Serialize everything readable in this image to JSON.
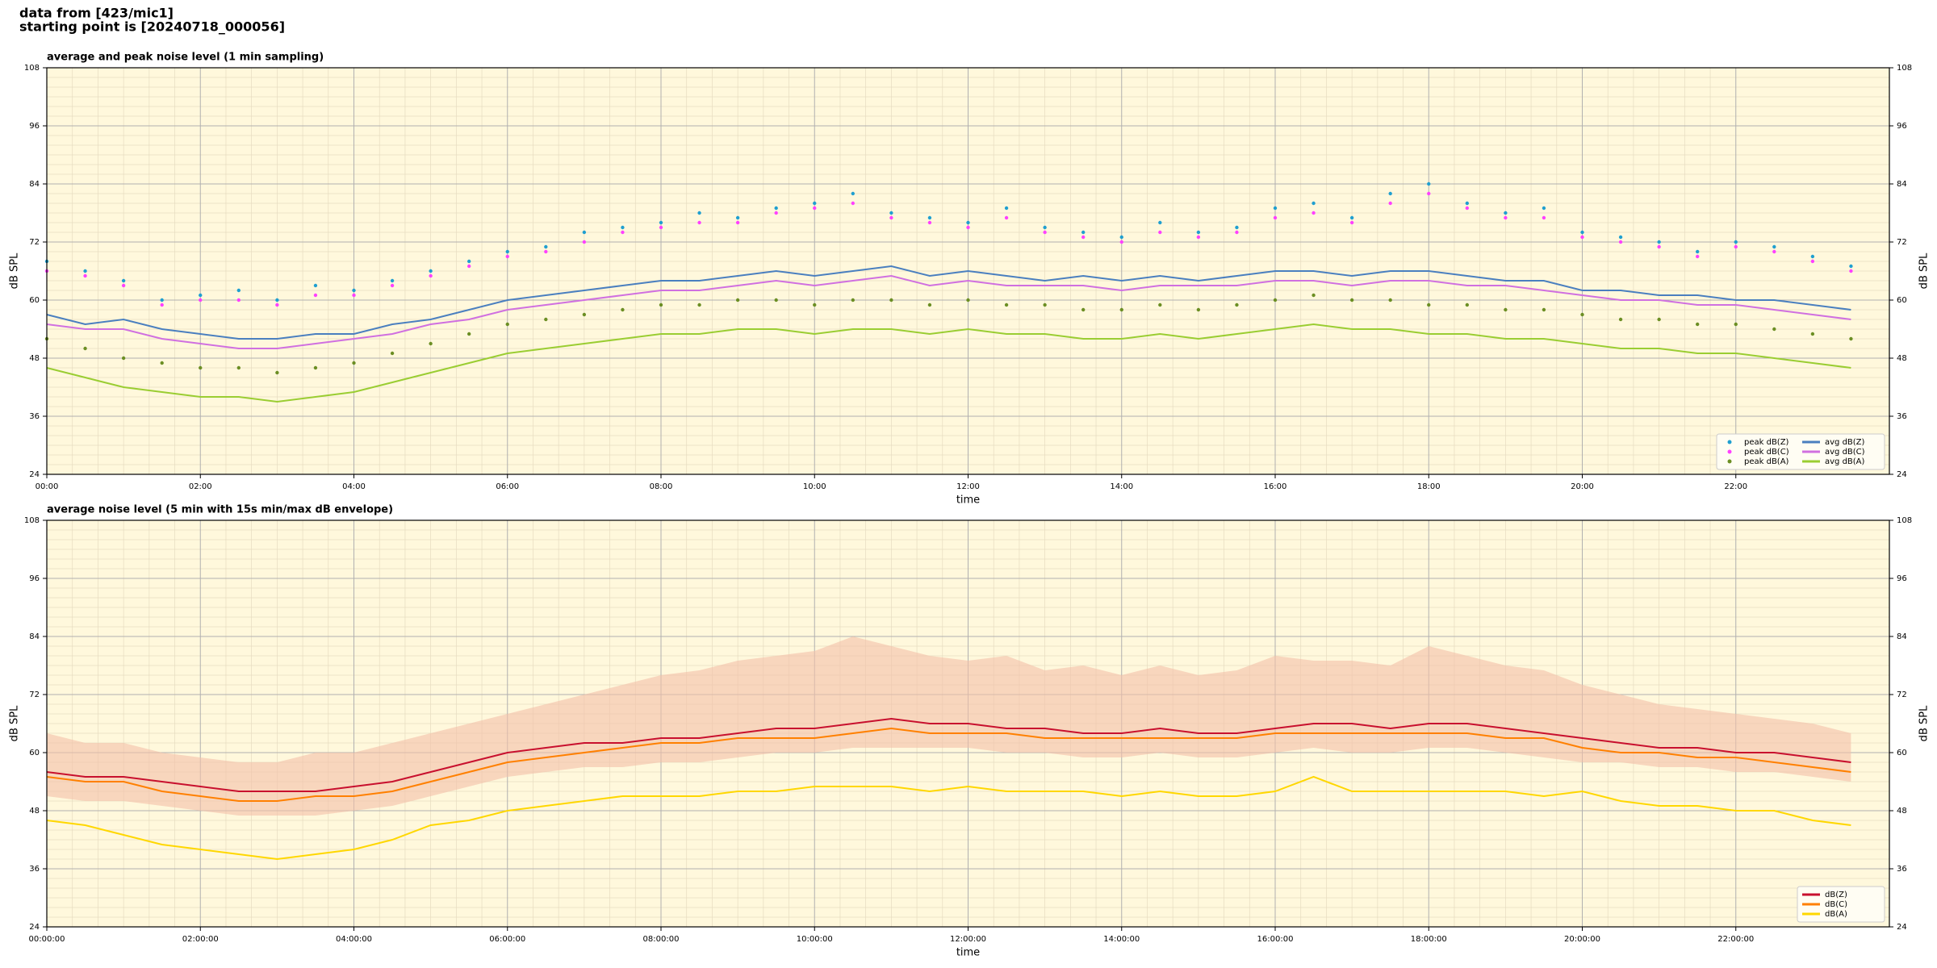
{
  "suptitle": [
    "data from [423/mic1]",
    "starting point is [20240718_000056]"
  ],
  "chart_data": [
    {
      "type": "line",
      "title": "average and peak noise level (1 min sampling)",
      "xlabel": "time",
      "ylabel": "dB SPL",
      "x": [
        0,
        0.5,
        1,
        1.5,
        2,
        2.5,
        3,
        3.5,
        4,
        4.5,
        5,
        5.5,
        6,
        6.5,
        7,
        7.5,
        8,
        8.5,
        9,
        9.5,
        10,
        10.5,
        11,
        11.5,
        12,
        12.5,
        13,
        13.5,
        14,
        14.5,
        15,
        15.5,
        16,
        16.5,
        17,
        17.5,
        18,
        18.5,
        19,
        19.5,
        20,
        20.5,
        21,
        21.5,
        22,
        22.5,
        23,
        23.5
      ],
      "xlim": [
        0,
        24
      ],
      "ylim": [
        24,
        108
      ],
      "yticks": [
        24,
        36,
        48,
        60,
        72,
        84,
        96,
        108
      ],
      "xticks": [
        {
          "value": 0,
          "label": "00:00"
        },
        {
          "value": 2,
          "label": "02:00"
        },
        {
          "value": 4,
          "label": "04:00"
        },
        {
          "value": 6,
          "label": "06:00"
        },
        {
          "value": 8,
          "label": "08:00"
        },
        {
          "value": 10,
          "label": "10:00"
        },
        {
          "value": 12,
          "label": "12:00"
        },
        {
          "value": 14,
          "label": "14:00"
        },
        {
          "value": 16,
          "label": "16:00"
        },
        {
          "value": 18,
          "label": "18:00"
        },
        {
          "value": 20,
          "label": "20:00"
        },
        {
          "value": 22,
          "label": "22:00"
        }
      ],
      "grid": true,
      "legend": "lower right",
      "legend_columns": 2,
      "series": [
        {
          "name": "peak dB(Z)",
          "kind": "scatter",
          "color": "#1f9fd0",
          "values": [
            68,
            66,
            64,
            60,
            61,
            62,
            60,
            63,
            62,
            64,
            66,
            68,
            70,
            71,
            74,
            75,
            76,
            78,
            77,
            79,
            80,
            82,
            78,
            77,
            76,
            79,
            75,
            74,
            73,
            76,
            74,
            75,
            79,
            80,
            77,
            82,
            84,
            80,
            78,
            79,
            74,
            73,
            72,
            70,
            72,
            71,
            69,
            67
          ]
        },
        {
          "name": "peak dB(C)",
          "kind": "scatter",
          "color": "#ff40ff",
          "values": [
            66,
            65,
            63,
            59,
            60,
            60,
            59,
            61,
            61,
            63,
            65,
            67,
            69,
            70,
            72,
            74,
            75,
            76,
            76,
            78,
            79,
            80,
            77,
            76,
            75,
            77,
            74,
            73,
            72,
            74,
            73,
            74,
            77,
            78,
            76,
            80,
            82,
            79,
            77,
            77,
            73,
            72,
            71,
            69,
            71,
            70,
            68,
            66
          ]
        },
        {
          "name": "peak dB(A)",
          "kind": "scatter",
          "color": "#6b8e23",
          "values": [
            52,
            50,
            48,
            47,
            46,
            46,
            45,
            46,
            47,
            49,
            51,
            53,
            55,
            56,
            57,
            58,
            59,
            59,
            60,
            60,
            59,
            60,
            60,
            59,
            60,
            59,
            59,
            58,
            58,
            59,
            58,
            59,
            60,
            61,
            60,
            60,
            59,
            59,
            58,
            58,
            57,
            56,
            56,
            55,
            55,
            54,
            53,
            52
          ]
        },
        {
          "name": "avg dB(Z)",
          "kind": "line",
          "color": "#4a7fbf",
          "values": [
            57,
            55,
            56,
            54,
            53,
            52,
            52,
            53,
            53,
            55,
            56,
            58,
            60,
            61,
            62,
            63,
            64,
            64,
            65,
            66,
            65,
            66,
            67,
            65,
            66,
            65,
            64,
            65,
            64,
            65,
            64,
            65,
            66,
            66,
            65,
            66,
            66,
            65,
            64,
            64,
            62,
            62,
            61,
            61,
            60,
            60,
            59,
            58
          ]
        },
        {
          "name": "avg dB(C)",
          "kind": "line",
          "color": "#d070e0",
          "values": [
            55,
            54,
            54,
            52,
            51,
            50,
            50,
            51,
            52,
            53,
            55,
            56,
            58,
            59,
            60,
            61,
            62,
            62,
            63,
            64,
            63,
            64,
            65,
            63,
            64,
            63,
            63,
            63,
            62,
            63,
            63,
            63,
            64,
            64,
            63,
            64,
            64,
            63,
            63,
            62,
            61,
            60,
            60,
            59,
            59,
            58,
            57,
            56
          ]
        },
        {
          "name": "avg dB(A)",
          "kind": "line",
          "color": "#9acd32",
          "values": [
            46,
            44,
            42,
            41,
            40,
            40,
            39,
            40,
            41,
            43,
            45,
            47,
            49,
            50,
            51,
            52,
            53,
            53,
            54,
            54,
            53,
            54,
            54,
            53,
            54,
            53,
            53,
            52,
            52,
            53,
            52,
            53,
            54,
            55,
            54,
            54,
            53,
            53,
            52,
            52,
            51,
            50,
            50,
            49,
            49,
            48,
            47,
            46
          ]
        }
      ]
    },
    {
      "type": "line",
      "title": "average noise level (5 min with 15s min/max dB envelope)",
      "xlabel": "time",
      "ylabel": "dB SPL",
      "x": [
        0,
        0.5,
        1,
        1.5,
        2,
        2.5,
        3,
        3.5,
        4,
        4.5,
        5,
        5.5,
        6,
        6.5,
        7,
        7.5,
        8,
        8.5,
        9,
        9.5,
        10,
        10.5,
        11,
        11.5,
        12,
        12.5,
        13,
        13.5,
        14,
        14.5,
        15,
        15.5,
        16,
        16.5,
        17,
        17.5,
        18,
        18.5,
        19,
        19.5,
        20,
        20.5,
        21,
        21.5,
        22,
        22.5,
        23,
        23.5
      ],
      "xlim": [
        0,
        24
      ],
      "ylim": [
        24,
        108
      ],
      "yticks": [
        24,
        36,
        48,
        60,
        72,
        84,
        96,
        108
      ],
      "xticks": [
        {
          "value": 0,
          "label": "00:00:00"
        },
        {
          "value": 2,
          "label": "02:00:00"
        },
        {
          "value": 4,
          "label": "04:00:00"
        },
        {
          "value": 6,
          "label": "06:00:00"
        },
        {
          "value": 8,
          "label": "08:00:00"
        },
        {
          "value": 10,
          "label": "10:00:00"
        },
        {
          "value": 12,
          "label": "12:00:00"
        },
        {
          "value": 14,
          "label": "14:00:00"
        },
        {
          "value": 16,
          "label": "16:00:00"
        },
        {
          "value": 18,
          "label": "18:00:00"
        },
        {
          "value": 20,
          "label": "20:00:00"
        },
        {
          "value": 22,
          "label": "22:00:00"
        }
      ],
      "grid": true,
      "legend": "lower right",
      "legend_columns": 1,
      "envelope": {
        "color": "#f4c0a8",
        "max": [
          64,
          62,
          62,
          60,
          59,
          58,
          58,
          60,
          60,
          62,
          64,
          66,
          68,
          70,
          72,
          74,
          76,
          77,
          79,
          80,
          81,
          84,
          82,
          80,
          79,
          80,
          77,
          78,
          76,
          78,
          76,
          77,
          80,
          79,
          79,
          78,
          82,
          80,
          78,
          77,
          74,
          72,
          70,
          69,
          68,
          67,
          66,
          64
        ],
        "min": [
          51,
          50,
          50,
          49,
          48,
          47,
          47,
          47,
          48,
          49,
          51,
          53,
          55,
          56,
          57,
          57,
          58,
          58,
          59,
          60,
          60,
          61,
          61,
          61,
          61,
          60,
          60,
          59,
          59,
          60,
          59,
          59,
          60,
          61,
          60,
          60,
          61,
          61,
          60,
          59,
          58,
          58,
          57,
          57,
          56,
          56,
          55,
          54
        ]
      },
      "series": [
        {
          "name": "dB(Z)",
          "kind": "line",
          "color": "#c8102e",
          "values": [
            56,
            55,
            55,
            54,
            53,
            52,
            52,
            52,
            53,
            54,
            56,
            58,
            60,
            61,
            62,
            62,
            63,
            63,
            64,
            65,
            65,
            66,
            67,
            66,
            66,
            65,
            65,
            64,
            64,
            65,
            64,
            64,
            65,
            66,
            66,
            65,
            66,
            66,
            65,
            64,
            63,
            62,
            61,
            61,
            60,
            60,
            59,
            58
          ]
        },
        {
          "name": "dB(C)",
          "kind": "line",
          "color": "#ff8000",
          "values": [
            55,
            54,
            54,
            52,
            51,
            50,
            50,
            51,
            51,
            52,
            54,
            56,
            58,
            59,
            60,
            61,
            62,
            62,
            63,
            63,
            63,
            64,
            65,
            64,
            64,
            64,
            63,
            63,
            63,
            63,
            63,
            63,
            64,
            64,
            64,
            64,
            64,
            64,
            63,
            63,
            61,
            60,
            60,
            59,
            59,
            58,
            57,
            56
          ]
        },
        {
          "name": "dB(A)",
          "kind": "line",
          "color": "#ffd700",
          "values": [
            46,
            45,
            43,
            41,
            40,
            39,
            38,
            39,
            40,
            42,
            45,
            46,
            48,
            49,
            50,
            51,
            51,
            51,
            52,
            52,
            53,
            53,
            53,
            52,
            53,
            52,
            52,
            52,
            51,
            52,
            51,
            51,
            52,
            55,
            52,
            52,
            52,
            52,
            52,
            51,
            52,
            50,
            49,
            49,
            48,
            48,
            46,
            45
          ]
        }
      ]
    }
  ]
}
